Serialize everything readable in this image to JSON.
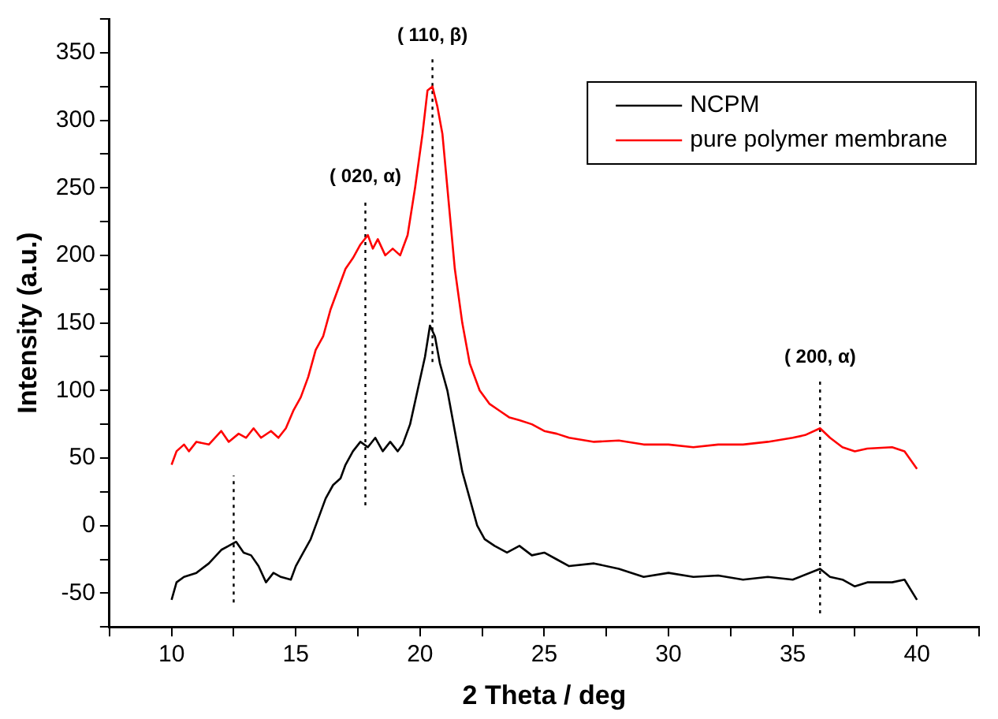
{
  "chart_data": {
    "type": "line",
    "xlabel": "2 Theta / deg",
    "ylabel": "Intensity (a.u.)",
    "xlim": [
      7.5,
      42.5
    ],
    "xticks": [
      {
        "value": 7.5,
        "label": null
      },
      10,
      {
        "value": 12.5,
        "label": null
      },
      15,
      {
        "value": 17.5,
        "label": null
      },
      20,
      {
        "value": 22.5,
        "label": null
      },
      25,
      {
        "value": 27.5,
        "label": null
      },
      30,
      {
        "value": 32.5,
        "label": null
      },
      35,
      {
        "value": 37.5,
        "label": null
      },
      40,
      {
        "value": 42.5,
        "label": null
      }
    ],
    "ylim": [
      -75,
      375
    ],
    "yticks": [
      {
        "value": -75,
        "label": null
      },
      -50,
      {
        "value": -25,
        "label": null
      },
      0,
      {
        "value": 25,
        "label": null
      },
      50,
      {
        "value": 75,
        "label": null
      },
      100,
      {
        "value": 125,
        "label": null
      },
      150,
      {
        "value": 175,
        "label": null
      },
      200,
      {
        "value": 225,
        "label": null
      },
      250,
      {
        "value": 275,
        "label": null
      },
      300,
      {
        "value": 325,
        "label": null
      },
      350,
      {
        "value": 375,
        "label": null
      }
    ],
    "grid": false,
    "legend": "top right",
    "line_style": "solid",
    "series": [
      {
        "name": "NCPM",
        "color": "#000000",
        "x": [
          10,
          10.2,
          10.5,
          11,
          11.5,
          12,
          12.3,
          12.6,
          12.9,
          13.2,
          13.5,
          13.8,
          14.1,
          14.4,
          14.8,
          15,
          15.3,
          15.6,
          15.9,
          16.2,
          16.5,
          16.8,
          17,
          17.3,
          17.6,
          17.9,
          18.2,
          18.5,
          18.8,
          19.1,
          19.3,
          19.6,
          19.9,
          20.2,
          20.4,
          20.6,
          20.8,
          21.1,
          21.4,
          21.7,
          22,
          22.3,
          22.6,
          23,
          23.5,
          24,
          24.5,
          25,
          25.5,
          26,
          27,
          28,
          29,
          30,
          31,
          32,
          33,
          34,
          35,
          36.1,
          36.5,
          37,
          37.5,
          38,
          39,
          39.5,
          40
        ],
        "values": [
          -55,
          -42,
          -38,
          -35,
          -28,
          -18,
          -15,
          -12,
          -20,
          -22,
          -30,
          -42,
          -35,
          -38,
          -40,
          -30,
          -20,
          -10,
          5,
          20,
          30,
          35,
          45,
          55,
          62,
          58,
          65,
          55,
          62,
          55,
          60,
          75,
          100,
          125,
          148,
          140,
          120,
          100,
          70,
          40,
          20,
          0,
          -10,
          -15,
          -20,
          -15,
          -22,
          -20,
          -25,
          -30,
          -28,
          -32,
          -38,
          -35,
          -38,
          -37,
          -40,
          -38,
          -40,
          -32,
          -38,
          -40,
          -45,
          -42,
          -42,
          -40,
          -55
        ]
      },
      {
        "name": "pure polymer membrane",
        "color": "#ff0000",
        "x": [
          10,
          10.2,
          10.5,
          10.7,
          11,
          11.5,
          12,
          12.3,
          12.7,
          13,
          13.3,
          13.6,
          14,
          14.3,
          14.6,
          14.9,
          15.2,
          15.5,
          15.8,
          16.1,
          16.4,
          16.7,
          17,
          17.3,
          17.6,
          17.9,
          18.1,
          18.3,
          18.6,
          18.9,
          19.2,
          19.5,
          19.8,
          20.1,
          20.3,
          20.5,
          20.7,
          20.9,
          21.1,
          21.4,
          21.7,
          22,
          22.4,
          22.8,
          23.2,
          23.6,
          24,
          24.5,
          25,
          25.5,
          26,
          27,
          28,
          29,
          30,
          31,
          32,
          33,
          34,
          35,
          35.5,
          36.1,
          36.5,
          37,
          37.5,
          38,
          39,
          39.5,
          40
        ],
        "values": [
          45,
          55,
          60,
          55,
          62,
          60,
          70,
          62,
          68,
          65,
          72,
          65,
          70,
          65,
          72,
          85,
          95,
          110,
          130,
          140,
          160,
          175,
          190,
          198,
          208,
          215,
          205,
          212,
          200,
          205,
          200,
          215,
          250,
          290,
          322,
          325,
          310,
          290,
          250,
          190,
          150,
          120,
          100,
          90,
          85,
          80,
          78,
          75,
          70,
          68,
          65,
          62,
          63,
          60,
          60,
          58,
          60,
          60,
          62,
          65,
          67,
          72,
          65,
          58,
          55,
          57,
          58,
          55,
          42
        ]
      },
      {
        "color": "#000000",
        "line_style": "dotted",
        "x": [
          12.5,
          12.5
        ],
        "values": [
          -57,
          37
        ]
      },
      {
        "color": "#000000",
        "line_style": "dotted",
        "x": [
          17.8,
          17.8
        ],
        "values": [
          15,
          242
        ]
      },
      {
        "color": "#000000",
        "line_style": "dotted",
        "x": [
          20.5,
          20.5
        ],
        "values": [
          121,
          346
        ]
      },
      {
        "color": "#000000",
        "line_style": "dotted",
        "x": [
          36.1,
          36.1
        ],
        "values": [
          -65,
          108
        ]
      }
    ],
    "annotations": [
      {
        "text": "( 020, α)",
        "x": 17.8,
        "y": 242
      },
      {
        "text": "( 110, β)",
        "x": 20.5,
        "y": 346
      },
      {
        "text": "( 200, α)",
        "x": 36.1,
        "y": 108
      }
    ]
  }
}
